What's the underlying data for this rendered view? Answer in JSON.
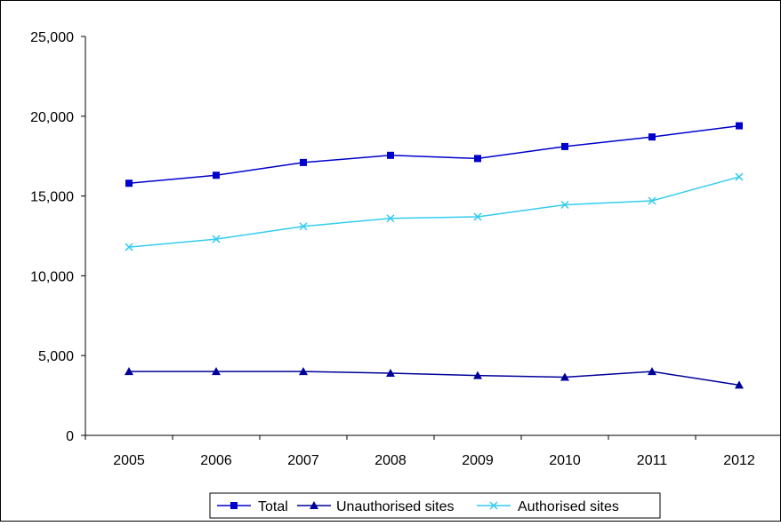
{
  "chart_data": {
    "type": "line",
    "title": "",
    "xlabel": "",
    "ylabel": "",
    "categories": [
      "2005",
      "2006",
      "2007",
      "2008",
      "2009",
      "2010",
      "2011",
      "2012"
    ],
    "ylim": [
      0,
      25000
    ],
    "y_ticks": [
      0,
      5000,
      10000,
      15000,
      20000,
      25000
    ],
    "y_tick_labels": [
      "0",
      "5,000",
      "10,000",
      "15,000",
      "20,000",
      "25,000"
    ],
    "grid": false,
    "legend_position": "bottom",
    "series": [
      {
        "name": "Total",
        "marker": "square",
        "color": "#0000cc",
        "values": [
          15800,
          16300,
          17100,
          17550,
          17350,
          18100,
          18700,
          19400
        ]
      },
      {
        "name": "Unauthorised sites",
        "marker": "triangle",
        "color": "#000099",
        "values": [
          4000,
          4000,
          4000,
          3900,
          3750,
          3650,
          4000,
          3150
        ]
      },
      {
        "name": "Authorised sites",
        "marker": "x",
        "color": "#33ccee",
        "values": [
          11800,
          12300,
          13100,
          13600,
          13700,
          14450,
          14700,
          16200
        ]
      }
    ]
  }
}
